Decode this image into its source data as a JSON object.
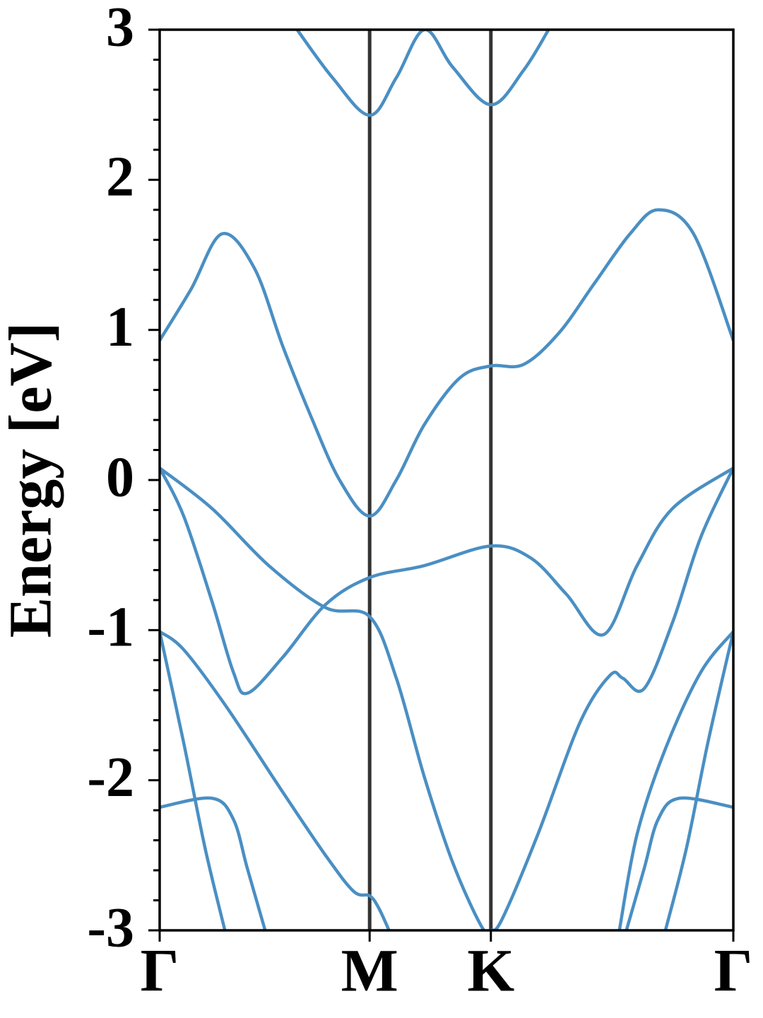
{
  "chart_data": {
    "type": "line",
    "ylabel": "Energy [eV]",
    "color": "#4a8fc3",
    "xlim": [
      0,
      2.366
    ],
    "xticks": [
      {
        "value": 0,
        "label": "Γ"
      },
      {
        "value": 0.866,
        "label": "M"
      },
      {
        "value": 1.366,
        "label": "K"
      },
      {
        "value": 2.366,
        "label": "Γ"
      }
    ],
    "xtick_lines": true,
    "ylim": [
      -3,
      3
    ],
    "yticks": [
      -3,
      -2,
      -1,
      0,
      1,
      2,
      3
    ],
    "yminorticks": [
      -2.8,
      -2.6,
      -2.4,
      -2.2,
      -1.8,
      -1.6,
      -1.4,
      -1.2,
      -0.8,
      -0.6,
      -0.4,
      -0.2,
      0.2,
      0.4,
      0.6,
      0.8,
      1.2,
      1.4,
      1.6,
      1.8,
      2.2,
      2.4,
      2.6,
      2.8
    ],
    "series": [
      {
        "x": [
          0.567,
          0.713,
          0.866,
          0.976,
          1.092,
          1.209,
          1.366,
          1.501,
          1.604
        ],
        "values": [
          3.0,
          2.68,
          2.43,
          2.68,
          3.0,
          2.75,
          2.5,
          2.73,
          3.0
        ]
      },
      {
        "x": [
          0,
          0.129,
          0.257,
          0.391,
          0.508,
          0.625,
          0.742,
          0.866,
          0.976,
          1.092,
          1.238,
          1.366,
          1.501,
          1.647,
          1.793,
          1.94,
          2.056,
          2.202,
          2.366
        ],
        "values": [
          0.93,
          1.27,
          1.64,
          1.41,
          0.89,
          0.42,
          0.0,
          -0.24,
          0.0,
          0.37,
          0.68,
          0.76,
          0.77,
          0.98,
          1.31,
          1.64,
          1.8,
          1.64,
          0.93
        ]
      },
      {
        "x": [
          0,
          0.216,
          0.45,
          0.684,
          0.866,
          0.976,
          1.092,
          1.209,
          1.326,
          1.366,
          1.414,
          1.56,
          1.735,
          1.858,
          1.91,
          1.998,
          2.115,
          2.232,
          2.366
        ],
        "values": [
          0.08,
          -0.19,
          -0.57,
          -0.85,
          -0.91,
          -1.32,
          -1.98,
          -2.55,
          -2.97,
          -3.0,
          -2.92,
          -2.36,
          -1.61,
          -1.3,
          -1.32,
          -1.39,
          -0.95,
          -0.38,
          0.08
        ]
      },
      {
        "x": [
          0,
          0.099,
          0.216,
          0.304,
          0.362,
          0.508,
          0.684,
          0.866,
          1.092,
          1.366,
          1.531,
          1.677,
          1.831,
          1.969,
          2.115,
          2.366
        ],
        "values": [
          0.08,
          -0.24,
          -0.81,
          -1.28,
          -1.42,
          -1.18,
          -0.83,
          -0.65,
          -0.57,
          -0.44,
          -0.52,
          -0.76,
          -1.03,
          -0.57,
          -0.19,
          0.08
        ]
      },
      {
        "x": [
          0,
          0.099,
          0.275,
          0.508,
          0.684,
          0.8,
          0.866,
          0.903,
          0.946
        ],
        "values": [
          -1.01,
          -1.13,
          -1.51,
          -2.08,
          -2.5,
          -2.74,
          -2.77,
          -2.85,
          -3.0
        ]
      },
      {
        "x": [
          1.896,
          1.969,
          2.086,
          2.232,
          2.366
        ],
        "values": [
          -3.0,
          -2.36,
          -1.79,
          -1.28,
          -1.01
        ]
      },
      {
        "x": [
          0,
          0.099,
          0.187,
          0.269
        ],
        "values": [
          -1.01,
          -1.75,
          -2.45,
          -3.0
        ]
      },
      {
        "x": [
          2.086,
          2.173,
          2.261,
          2.366
        ],
        "values": [
          -3.0,
          -2.45,
          -1.75,
          -1.01
        ]
      },
      {
        "x": [
          0,
          0.216,
          0.304,
          0.362,
          0.435
        ],
        "values": [
          -2.18,
          -2.12,
          -2.26,
          -2.59,
          -3.0
        ]
      },
      {
        "x": [
          1.925,
          1.998,
          2.056,
          2.144,
          2.366
        ],
        "values": [
          -3.0,
          -2.59,
          -2.26,
          -2.12,
          -2.18
        ]
      }
    ]
  }
}
